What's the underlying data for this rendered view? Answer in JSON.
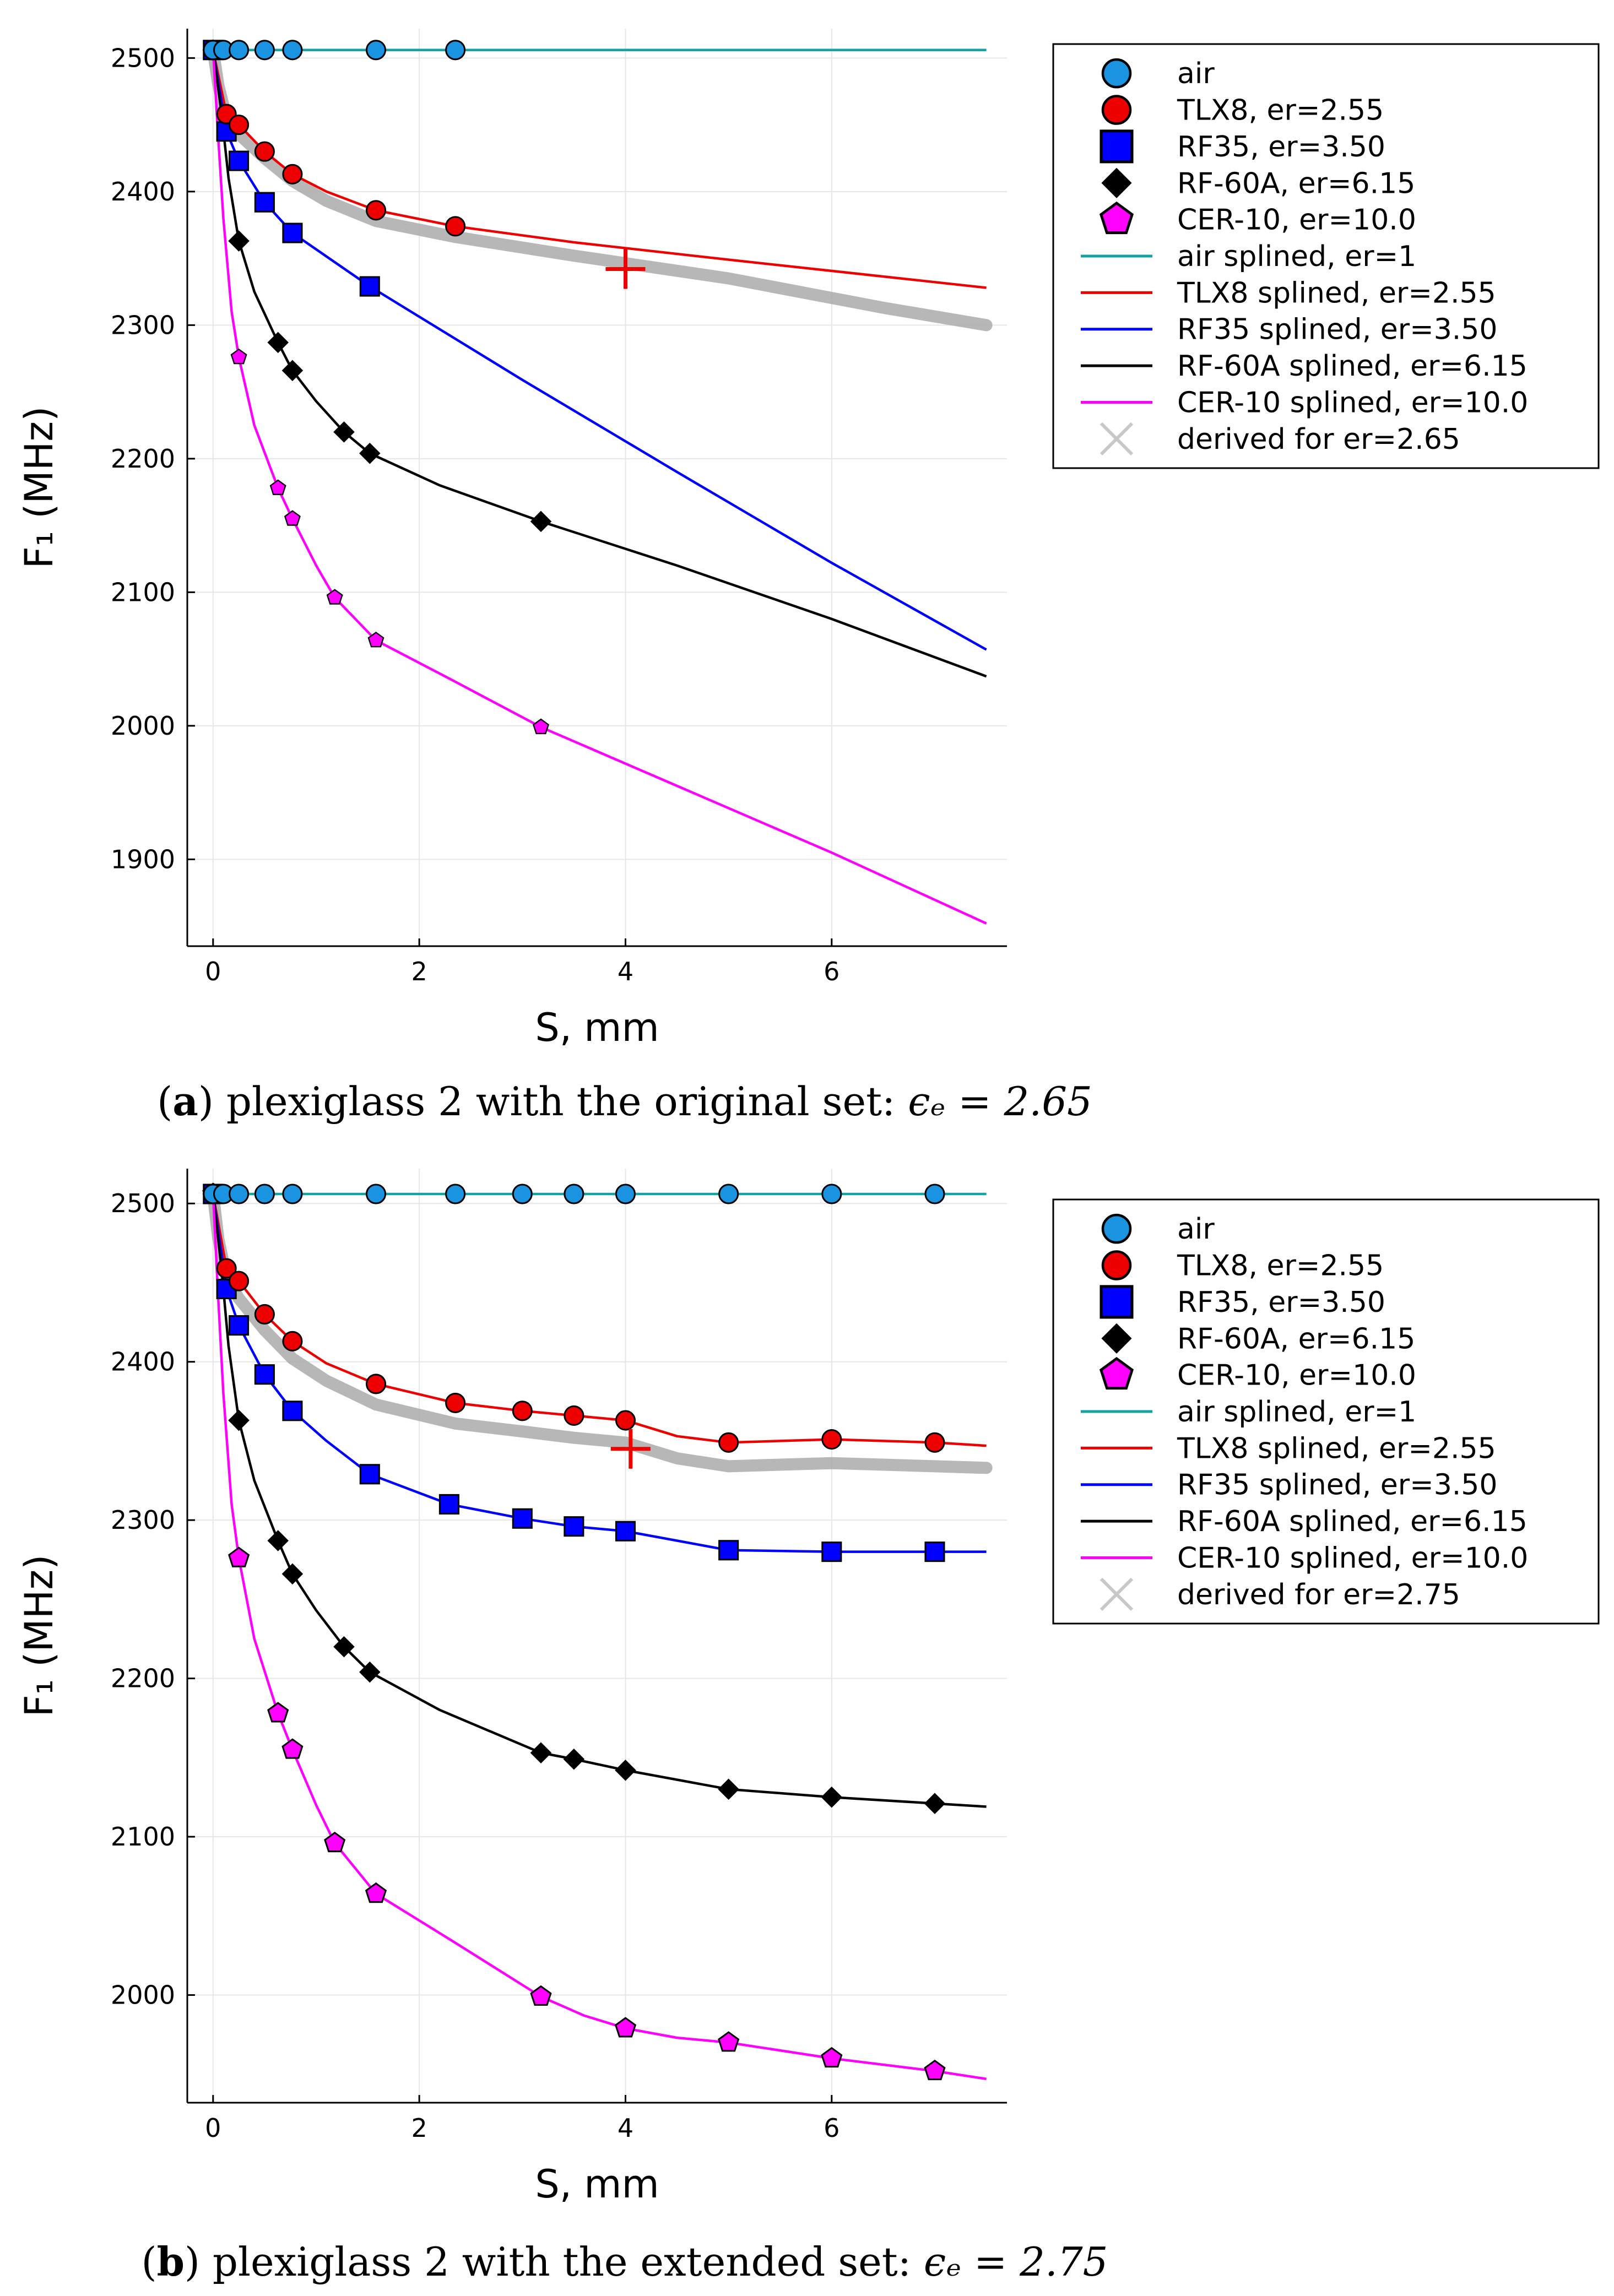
{
  "chart_data": [
    {
      "type": "line",
      "caption_letter": "a",
      "caption_text": "plexiglass 2 with the original set: ",
      "caption_eq": "ϵₑ = 2.65",
      "xlabel": "S, mm",
      "ylabel": "F₁ (MHz)",
      "xlim": [
        -0.25,
        7.7
      ],
      "ylim": [
        1835,
        2522
      ],
      "xticks": [
        0,
        2,
        4,
        6
      ],
      "yticks": [
        1900,
        2000,
        2100,
        2200,
        2300,
        2400,
        2500
      ],
      "grid": true,
      "legend_position": "top-right outside",
      "marker_series": [
        {
          "name": "air",
          "marker": "circle",
          "color": "#1a93e0",
          "x": [
            0,
            0.1,
            0.25,
            0.5,
            0.77,
            1.58,
            2.35
          ],
          "y": [
            2506,
            2506,
            2506,
            2506,
            2506,
            2506,
            2506
          ]
        },
        {
          "name": "TLX8, er=2.55",
          "marker": "circle",
          "color": "#ee0000",
          "x": [
            0,
            0.13,
            0.25,
            0.5,
            0.77,
            1.58,
            2.35
          ],
          "y": [
            2506,
            2458,
            2450,
            2430,
            2413,
            2386,
            2374
          ]
        },
        {
          "name": "RF35, er=3.50",
          "marker": "square",
          "color": "#0000ff",
          "x": [
            0,
            0.13,
            0.25,
            0.5,
            0.77,
            1.52
          ],
          "y": [
            2506,
            2445,
            2423,
            2392,
            2369,
            2329
          ]
        },
        {
          "name": "RF-60A, er=6.15",
          "marker": "diamond",
          "color": "#000000",
          "x": [
            0,
            0.25,
            0.63,
            0.77,
            1.27,
            1.52,
            3.18
          ],
          "y": [
            2506,
            2363,
            2287,
            2266,
            2220,
            2204,
            2153
          ]
        },
        {
          "name": "CER-10, er=10.0",
          "marker": "pentagon",
          "color": "#ff00ff",
          "x": [
            0,
            0.25,
            0.63,
            0.77,
            1.18,
            1.58,
            3.18
          ],
          "y": [
            2506,
            2276,
            2178,
            2155,
            2096,
            2064,
            1999
          ]
        }
      ],
      "line_series": [
        {
          "name": "air splined, er=1",
          "color": "#17a2a2",
          "x": [
            0,
            7.5
          ],
          "y": [
            2506,
            2506
          ]
        },
        {
          "name": "TLX8 splined, er=2.55",
          "color": "#ee0000",
          "x": [
            0,
            0.13,
            0.25,
            0.5,
            0.77,
            1.1,
            1.58,
            2.35,
            3.5,
            5,
            7.5
          ],
          "y": [
            2506,
            2458,
            2450,
            2430,
            2413,
            2400,
            2386,
            2374,
            2362,
            2349,
            2328
          ]
        },
        {
          "name": "RF35 splined, er=3.50",
          "color": "#0000ff",
          "x": [
            0,
            0.13,
            0.25,
            0.5,
            0.77,
            1.52,
            3,
            4.5,
            6,
            7.5
          ],
          "y": [
            2506,
            2445,
            2423,
            2392,
            2369,
            2329,
            2259,
            2190,
            2122,
            2057
          ]
        },
        {
          "name": "RF-60A splined, er=6.15",
          "color": "#000000",
          "x": [
            0,
            0.08,
            0.15,
            0.25,
            0.4,
            0.63,
            0.77,
            1.0,
            1.27,
            1.52,
            2.2,
            3.18,
            4.5,
            6,
            7.5
          ],
          "y": [
            2506,
            2460,
            2410,
            2363,
            2325,
            2287,
            2266,
            2243,
            2220,
            2204,
            2180,
            2153,
            2120,
            2080,
            2037
          ]
        },
        {
          "name": "CER-10 splined, er=10.0",
          "color": "#ff00ff",
          "x": [
            0,
            0.05,
            0.1,
            0.18,
            0.25,
            0.4,
            0.63,
            0.77,
            1.0,
            1.18,
            1.58,
            2.3,
            3.18,
            4.5,
            6,
            7.5
          ],
          "y": [
            2506,
            2440,
            2380,
            2310,
            2276,
            2225,
            2178,
            2155,
            2120,
            2096,
            2064,
            2035,
            1999,
            1955,
            1905,
            1852
          ]
        }
      ],
      "derived": {
        "name": "derived for er=2.65",
        "color": "#aaaaaa",
        "x": [
          0,
          0.05,
          0.13,
          0.25,
          0.5,
          0.77,
          1.1,
          1.58,
          2.35,
          3.5,
          5,
          6.5,
          7.5
        ],
        "y": [
          2506,
          2480,
          2455,
          2443,
          2425,
          2408,
          2393,
          2378,
          2366,
          2352,
          2335,
          2313,
          2300
        ]
      },
      "measured_point": {
        "x": 4.0,
        "y": 2342,
        "color": "#ee0000"
      }
    },
    {
      "type": "line",
      "caption_letter": "b",
      "caption_text": "plexiglass 2 with the extended set: ",
      "caption_eq": "ϵₑ = 2.75",
      "xlabel": "S, mm",
      "ylabel": "F₁ (MHz)",
      "xlim": [
        -0.25,
        7.7
      ],
      "ylim": [
        1932,
        2522
      ],
      "xticks": [
        0,
        2,
        4,
        6
      ],
      "yticks": [
        2000,
        2100,
        2200,
        2300,
        2400,
        2500
      ],
      "grid": true,
      "legend_position": "top-right outside",
      "marker_series": [
        {
          "name": "air",
          "marker": "circle",
          "color": "#1a93e0",
          "x": [
            0,
            0.1,
            0.25,
            0.5,
            0.77,
            1.58,
            2.35,
            3.0,
            3.5,
            4.0,
            5.0,
            6.0,
            7.0
          ],
          "y": [
            2506,
            2506,
            2506,
            2506,
            2506,
            2506,
            2506,
            2506,
            2506,
            2506,
            2506,
            2506,
            2506
          ]
        },
        {
          "name": "TLX8, er=2.55",
          "marker": "circle",
          "color": "#ee0000",
          "x": [
            0,
            0.13,
            0.25,
            0.5,
            0.77,
            1.58,
            2.35,
            3.0,
            3.5,
            4.0,
            5.0,
            6.0,
            7.0
          ],
          "y": [
            2506,
            2459,
            2451,
            2430,
            2413,
            2386,
            2374,
            2369,
            2366,
            2363,
            2349,
            2351,
            2349
          ]
        },
        {
          "name": "RF35, er=3.50",
          "marker": "square",
          "color": "#0000ff",
          "x": [
            0,
            0.13,
            0.25,
            0.5,
            0.77,
            1.52,
            2.29,
            3.0,
            3.5,
            4.0,
            5.0,
            6.0,
            7.0
          ],
          "y": [
            2506,
            2446,
            2423,
            2392,
            2369,
            2329,
            2310,
            2301,
            2296,
            2293,
            2281,
            2280,
            2280
          ]
        },
        {
          "name": "RF-60A, er=6.15",
          "marker": "diamond",
          "color": "#000000",
          "x": [
            0,
            0.25,
            0.63,
            0.77,
            1.27,
            1.52,
            3.18,
            3.5,
            4.0,
            5.0,
            6.0,
            7.0
          ],
          "y": [
            2506,
            2363,
            2287,
            2266,
            2220,
            2204,
            2153,
            2149,
            2142,
            2130,
            2125,
            2121
          ]
        },
        {
          "name": "CER-10, er=10.0",
          "marker": "pentagon",
          "color": "#ff00ff",
          "x": [
            0,
            0.25,
            0.63,
            0.77,
            1.18,
            1.58,
            3.18,
            4.0,
            5.0,
            6.0,
            7.0
          ],
          "y": [
            2506,
            2276,
            2178,
            2155,
            2096,
            2064,
            1999,
            1979,
            1970,
            1960,
            1952
          ]
        }
      ],
      "line_series": [
        {
          "name": "air splined, er=1",
          "color": "#17a2a2",
          "x": [
            0,
            7.5
          ],
          "y": [
            2506,
            2506
          ]
        },
        {
          "name": "TLX8 splined, er=2.55",
          "color": "#ee0000",
          "x": [
            0,
            0.13,
            0.25,
            0.5,
            0.77,
            1.1,
            1.58,
            2.35,
            3.0,
            3.5,
            4.0,
            4.5,
            5.0,
            5.5,
            6.0,
            6.5,
            7.0,
            7.5
          ],
          "y": [
            2506,
            2459,
            2451,
            2430,
            2413,
            2399,
            2386,
            2374,
            2369,
            2366,
            2363,
            2353,
            2349,
            2350,
            2351,
            2350,
            2349,
            2347
          ]
        },
        {
          "name": "RF35 splined, er=3.50",
          "color": "#0000ff",
          "x": [
            0,
            0.13,
            0.25,
            0.5,
            0.77,
            1.1,
            1.52,
            2.29,
            3.0,
            3.5,
            4.0,
            4.5,
            5.0,
            6.0,
            7.0,
            7.5
          ],
          "y": [
            2506,
            2446,
            2423,
            2392,
            2369,
            2350,
            2329,
            2310,
            2301,
            2296,
            2293,
            2287,
            2281,
            2280,
            2280,
            2280
          ]
        },
        {
          "name": "RF-60A splined, er=6.15",
          "color": "#000000",
          "x": [
            0,
            0.08,
            0.15,
            0.25,
            0.4,
            0.63,
            0.77,
            1.0,
            1.27,
            1.52,
            2.2,
            3.18,
            3.5,
            4.0,
            5.0,
            6.0,
            7.0,
            7.5
          ],
          "y": [
            2506,
            2460,
            2410,
            2363,
            2325,
            2287,
            2266,
            2243,
            2220,
            2204,
            2180,
            2153,
            2149,
            2142,
            2130,
            2125,
            2121,
            2119
          ]
        },
        {
          "name": "CER-10 splined, er=10.0",
          "color": "#ff00ff",
          "x": [
            0,
            0.05,
            0.1,
            0.18,
            0.25,
            0.4,
            0.63,
            0.77,
            1.0,
            1.18,
            1.58,
            2.3,
            3.18,
            3.6,
            4.0,
            4.5,
            5.0,
            6.0,
            7.0,
            7.5
          ],
          "y": [
            2506,
            2440,
            2380,
            2310,
            2276,
            2225,
            2178,
            2155,
            2120,
            2096,
            2064,
            2035,
            1999,
            1987,
            1979,
            1973,
            1970,
            1960,
            1952,
            1947
          ]
        }
      ],
      "derived": {
        "name": "derived for er=2.75",
        "color": "#aaaaaa",
        "x": [
          0,
          0.05,
          0.13,
          0.25,
          0.5,
          0.77,
          1.1,
          1.58,
          2.35,
          3.0,
          3.5,
          4.0,
          4.5,
          5.0,
          5.5,
          6.0,
          6.5,
          7.0,
          7.5
        ],
        "y": [
          2506,
          2478,
          2453,
          2440,
          2420,
          2402,
          2388,
          2373,
          2361,
          2356,
          2352,
          2349,
          2339,
          2334,
          2335,
          2336,
          2335,
          2334,
          2333
        ]
      },
      "measured_point": {
        "x": 4.05,
        "y": 2345,
        "color": "#ee0000"
      }
    }
  ]
}
